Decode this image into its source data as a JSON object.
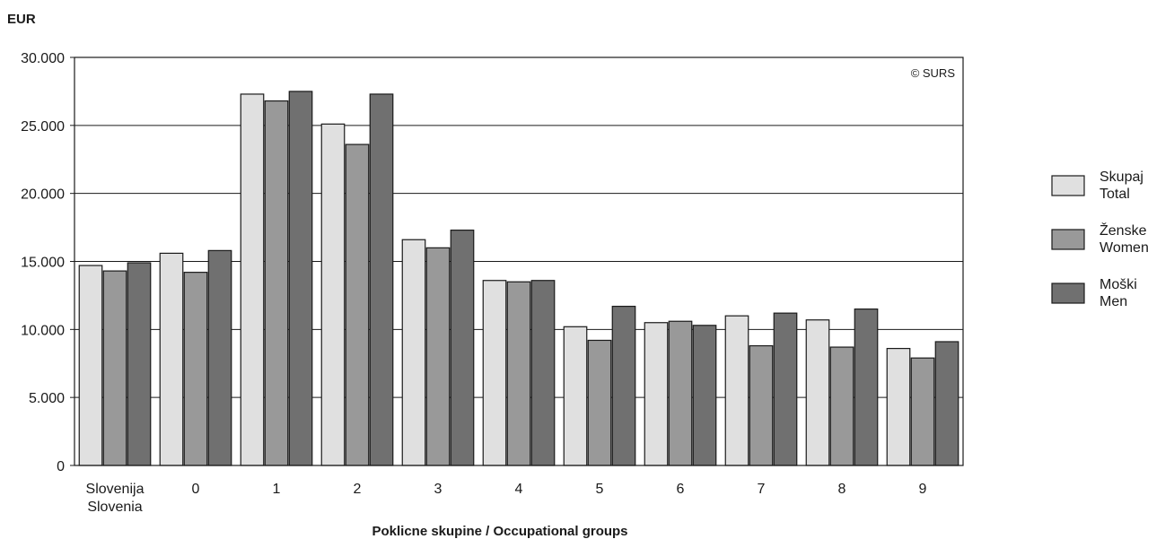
{
  "chart_data": {
    "type": "bar",
    "ylabel": "EUR",
    "xlabel": "Poklicne skupine / Occupational groups",
    "credit": "© SURS",
    "ylim": [
      0,
      30000
    ],
    "yticks": [
      0,
      5000,
      10000,
      15000,
      20000,
      25000,
      30000
    ],
    "ytick_labels": [
      "0",
      "5.000",
      "10.000",
      "15.000",
      "20.000",
      "25.000",
      "30.000"
    ],
    "grid": true,
    "legend_position": "right",
    "categories": [
      [
        "Slovenija",
        "Slovenia"
      ],
      [
        "0"
      ],
      [
        "1"
      ],
      [
        "2"
      ],
      [
        "3"
      ],
      [
        "4"
      ],
      [
        "5"
      ],
      [
        "6"
      ],
      [
        "7"
      ],
      [
        "8"
      ],
      [
        "9"
      ]
    ],
    "series": [
      {
        "name": [
          "Skupaj",
          "Total"
        ],
        "color": "#e0e0e0",
        "values": [
          14700,
          15600,
          27300,
          25100,
          16600,
          13600,
          10200,
          10500,
          11000,
          10700,
          8600
        ]
      },
      {
        "name": [
          "Ženske",
          "Women"
        ],
        "color": "#999999",
        "values": [
          14300,
          14200,
          26800,
          23600,
          16000,
          13500,
          9200,
          10600,
          8800,
          8700,
          7900
        ]
      },
      {
        "name": [
          "Moški",
          "Men"
        ],
        "color": "#707070",
        "values": [
          14900,
          15800,
          27500,
          27300,
          17300,
          13600,
          11700,
          10300,
          11200,
          11500,
          9100
        ]
      }
    ]
  }
}
